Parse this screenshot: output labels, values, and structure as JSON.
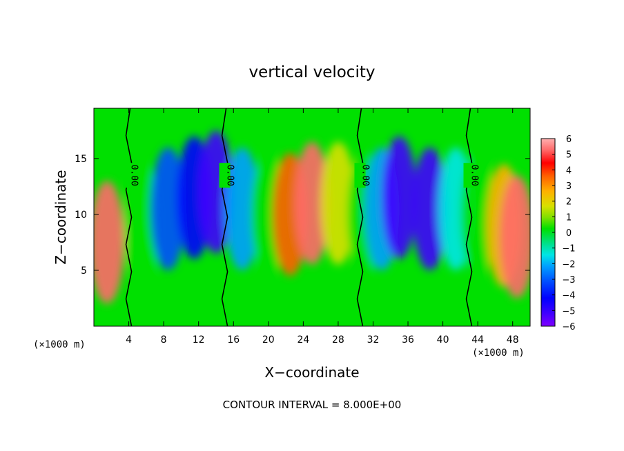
{
  "chart_data": {
    "type": "heatmap",
    "title": "vertical velocity",
    "xlabel": "X−coordinate",
    "ylabel": "Z−coordinate",
    "x_unit_left": "(×1000 m)",
    "x_unit_right": "(×1000 m)",
    "xlim": [
      0,
      50
    ],
    "ylim": [
      0,
      19.5
    ],
    "xticks": [
      "4",
      "8",
      "12",
      "16",
      "20",
      "24",
      "28",
      "32",
      "36",
      "40",
      "44",
      "48"
    ],
    "xtick_values": [
      4,
      8,
      12,
      16,
      20,
      24,
      28,
      32,
      36,
      40,
      44,
      48
    ],
    "yticks": [
      "5",
      "10",
      "15"
    ],
    "ytick_values": [
      5,
      10,
      15
    ],
    "colorbar": {
      "labels": [
        "6",
        "5",
        "4",
        "3",
        "2",
        "1",
        "0",
        "−1",
        "−2",
        "−3",
        "−4",
        "−5",
        "−6"
      ],
      "range": [
        -6,
        6
      ],
      "colors": [
        "#7f00ff",
        "#3f00ff",
        "#0000ff",
        "#0050ff",
        "#00a0ff",
        "#00e5e5",
        "#00e08a",
        "#00e000",
        "#80e000",
        "#d8e000",
        "#ffb000",
        "#ff6000",
        "#ff0000",
        "#ff6a6a",
        "#ffb0b0"
      ]
    },
    "contour_label": "0.00",
    "contour_labels": [
      "0.00",
      "0.00",
      "0.00",
      "0.00"
    ],
    "contour_label_x": [
      4.0,
      15.0,
      30.5,
      43.0
    ],
    "contour_interval_text": "CONTOUR INTERVAL =  8.000E+00",
    "cells": [
      {
        "x": 1.5,
        "z": 7.5,
        "w": 5.0
      },
      {
        "x": 5.5,
        "z": 9.0,
        "w": 0.0
      },
      {
        "x": 8.5,
        "z": 10.5,
        "w": -3.5
      },
      {
        "x": 11.5,
        "z": 11.5,
        "w": -4.5
      },
      {
        "x": 14.0,
        "z": 12.0,
        "w": -5.0
      },
      {
        "x": 17.0,
        "z": 10.5,
        "w": -3.0
      },
      {
        "x": 20.0,
        "z": 10.0,
        "w": 0.0
      },
      {
        "x": 22.5,
        "z": 10.0,
        "w": 3.5
      },
      {
        "x": 25.0,
        "z": 11.0,
        "w": 5.5
      },
      {
        "x": 28.0,
        "z": 11.0,
        "w": 2.0
      },
      {
        "x": 31.0,
        "z": 10.0,
        "w": 0.0
      },
      {
        "x": 33.0,
        "z": 10.5,
        "w": -3.0
      },
      {
        "x": 35.0,
        "z": 11.5,
        "w": -5.5
      },
      {
        "x": 38.5,
        "z": 10.5,
        "w": -5.0
      },
      {
        "x": 41.5,
        "z": 10.5,
        "w": -2.0
      },
      {
        "x": 44.0,
        "z": 10.0,
        "w": 0.0
      },
      {
        "x": 47.0,
        "z": 9.0,
        "w": 2.5
      },
      {
        "x": 48.5,
        "z": 8.0,
        "w": 5.5
      }
    ]
  }
}
